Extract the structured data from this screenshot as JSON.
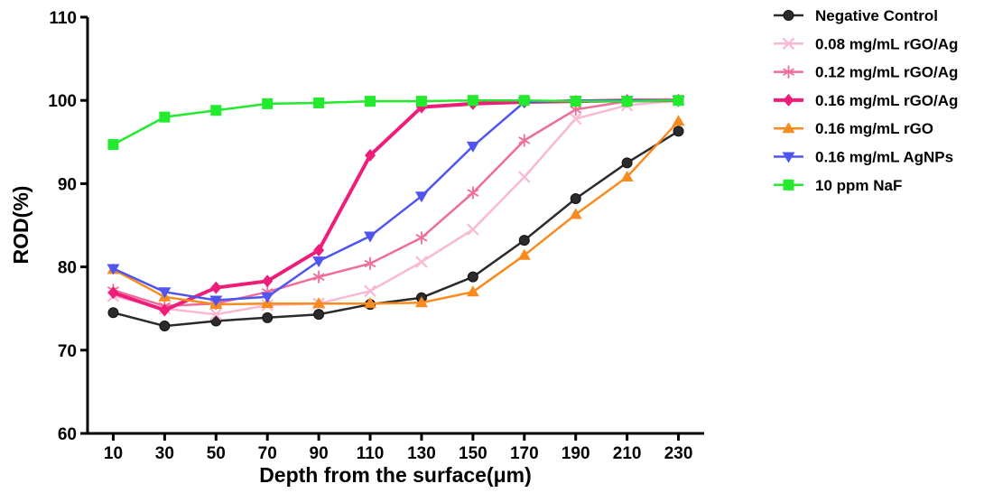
{
  "chart_data": {
    "type": "line",
    "xlabel": "Depth from the surface(μm)",
    "ylabel": "ROD(%)",
    "x": [
      10,
      30,
      50,
      70,
      90,
      110,
      130,
      150,
      170,
      190,
      210,
      230
    ],
    "xlim": [
      0,
      240
    ],
    "ylim": [
      60,
      110
    ],
    "yticks": [
      60,
      70,
      80,
      90,
      100,
      110
    ],
    "xticks": [
      10,
      30,
      50,
      70,
      90,
      110,
      130,
      150,
      170,
      190,
      210,
      230
    ],
    "grid": false,
    "legend_position": "top-right",
    "series": [
      {
        "name": "Negative Control",
        "color": "#2b2b2b",
        "marker": "circle",
        "values": [
          74.5,
          72.9,
          73.5,
          73.9,
          74.3,
          75.5,
          76.3,
          78.8,
          83.2,
          88.2,
          92.5,
          96.3
        ]
      },
      {
        "name": "0.08 mg/mL rGO/Ag",
        "color": "#f9b9d4",
        "marker": "x",
        "values": [
          76.5,
          75.0,
          74.3,
          75.4,
          75.6,
          77.1,
          80.6,
          84.5,
          90.8,
          97.8,
          99.4,
          100.0
        ]
      },
      {
        "name": "0.12 mg/mL rGO/Ag",
        "color": "#ee6d99",
        "marker": "asterisk",
        "values": [
          77.2,
          75.3,
          75.6,
          77.0,
          78.8,
          80.4,
          83.5,
          88.9,
          95.2,
          98.9,
          99.9,
          100.0
        ]
      },
      {
        "name": "0.16 mg/mL rGO/Ag",
        "color": "#ee1d7a",
        "marker": "diamond",
        "values": [
          76.9,
          74.8,
          77.5,
          78.3,
          82.0,
          93.4,
          99.2,
          99.6,
          99.8,
          99.9,
          100.0,
          100.0
        ]
      },
      {
        "name": "0.16 mg/mL rGO",
        "color": "#f78b1f",
        "marker": "triangle-up",
        "values": [
          79.7,
          76.4,
          75.5,
          75.6,
          75.6,
          75.6,
          75.7,
          77.0,
          81.4,
          86.3,
          90.8,
          97.5
        ]
      },
      {
        "name": "0.16 mg/mL AgNPs",
        "color": "#5055ef",
        "marker": "triangle-down",
        "values": [
          79.8,
          77.0,
          76.0,
          76.4,
          80.7,
          83.7,
          88.5,
          94.5,
          99.8,
          100.0,
          100.0,
          100.0
        ]
      },
      {
        "name": "10 ppm NaF",
        "color": "#22ea2d",
        "marker": "square",
        "values": [
          94.7,
          98.0,
          98.8,
          99.6,
          99.7,
          99.9,
          99.9,
          100.0,
          100.0,
          99.9,
          99.9,
          100.0
        ]
      }
    ]
  }
}
